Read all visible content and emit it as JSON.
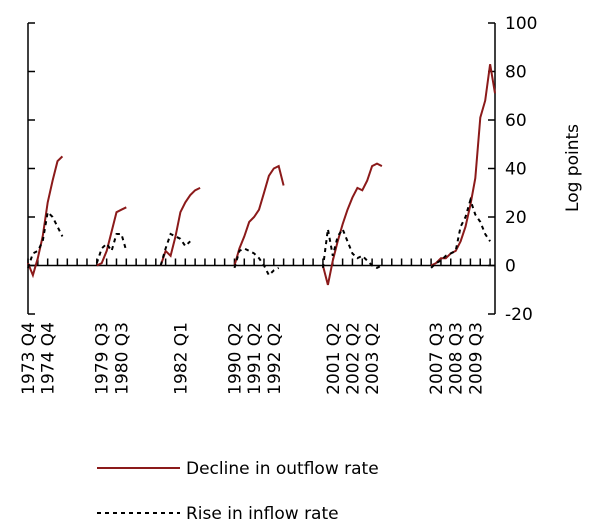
{
  "chart_data": {
    "type": "line",
    "y_label": "Log points",
    "ylim": [
      -20,
      100
    ],
    "yticks": [
      -20,
      0,
      20,
      40,
      60,
      80,
      100
    ],
    "legend": "bottom",
    "categories": [
      "1973 Q4",
      null,
      null,
      null,
      "1974 Q4",
      null,
      null,
      null,
      null,
      null,
      null,
      null,
      null,
      null,
      null,
      "1979 Q3",
      null,
      null,
      null,
      "1980 Q3",
      null,
      null,
      null,
      null,
      null,
      null,
      null,
      null,
      null,
      null,
      null,
      "1982 Q1",
      null,
      null,
      null,
      null,
      null,
      null,
      null,
      null,
      null,
      null,
      "1990 Q2",
      null,
      null,
      null,
      "1991 Q2",
      null,
      null,
      null,
      "1992 Q2",
      null,
      null,
      null,
      null,
      null,
      null,
      null,
      null,
      null,
      null,
      null,
      "2001 Q2",
      null,
      null,
      null,
      "2002 Q2",
      null,
      null,
      null,
      "2003 Q2",
      null,
      null,
      null,
      null,
      null,
      null,
      null,
      null,
      null,
      null,
      null,
      null,
      "2007 Q3",
      null,
      null,
      null,
      "2008 Q3",
      null,
      null,
      null,
      "2009 Q3",
      null,
      null,
      null,
      null
    ],
    "series": [
      {
        "name": "Decline in outflow rate",
        "color": "#8b1a1a",
        "dash": false,
        "values": [
          1,
          -4,
          3,
          12,
          26,
          35,
          43,
          45,
          null,
          null,
          null,
          null,
          null,
          null,
          0,
          1,
          6,
          14,
          22,
          23,
          24,
          null,
          null,
          null,
          null,
          null,
          null,
          0,
          6,
          4,
          12,
          22,
          26,
          29,
          31,
          32,
          null,
          null,
          null,
          null,
          null,
          null,
          0,
          7,
          12,
          18,
          20,
          23,
          30,
          37,
          40,
          41,
          33,
          null,
          null,
          null,
          null,
          null,
          null,
          null,
          0,
          -8,
          2,
          10,
          17,
          23,
          28,
          32,
          31,
          35,
          41,
          42,
          41,
          null,
          null,
          null,
          null,
          null,
          null,
          null,
          null,
          null,
          0,
          1,
          3,
          3,
          5,
          6,
          10,
          16,
          25,
          36,
          61,
          68,
          83,
          71
        ]
      },
      {
        "name": "Rise in inflow rate",
        "color": "#000000",
        "dash": true,
        "values": [
          -1,
          5,
          6,
          10,
          22,
          20,
          16,
          12,
          null,
          null,
          null,
          null,
          null,
          null,
          1,
          7,
          9,
          6,
          13,
          13,
          6,
          null,
          null,
          null,
          null,
          null,
          null,
          0,
          7,
          13,
          12,
          11,
          8,
          10,
          null,
          null,
          null,
          null,
          null,
          null,
          null,
          null,
          -1,
          6,
          7,
          6,
          5,
          3,
          0,
          -4,
          -2,
          -1,
          null,
          null,
          null,
          null,
          null,
          null,
          null,
          null,
          -1,
          15,
          4,
          12,
          15,
          10,
          5,
          3,
          4,
          2,
          0,
          -1,
          0,
          null,
          null,
          null,
          null,
          null,
          null,
          null,
          null,
          null,
          -1,
          1,
          2,
          4,
          5,
          6,
          16,
          20,
          27,
          21,
          18,
          13,
          10,
          null
        ]
      }
    ]
  }
}
